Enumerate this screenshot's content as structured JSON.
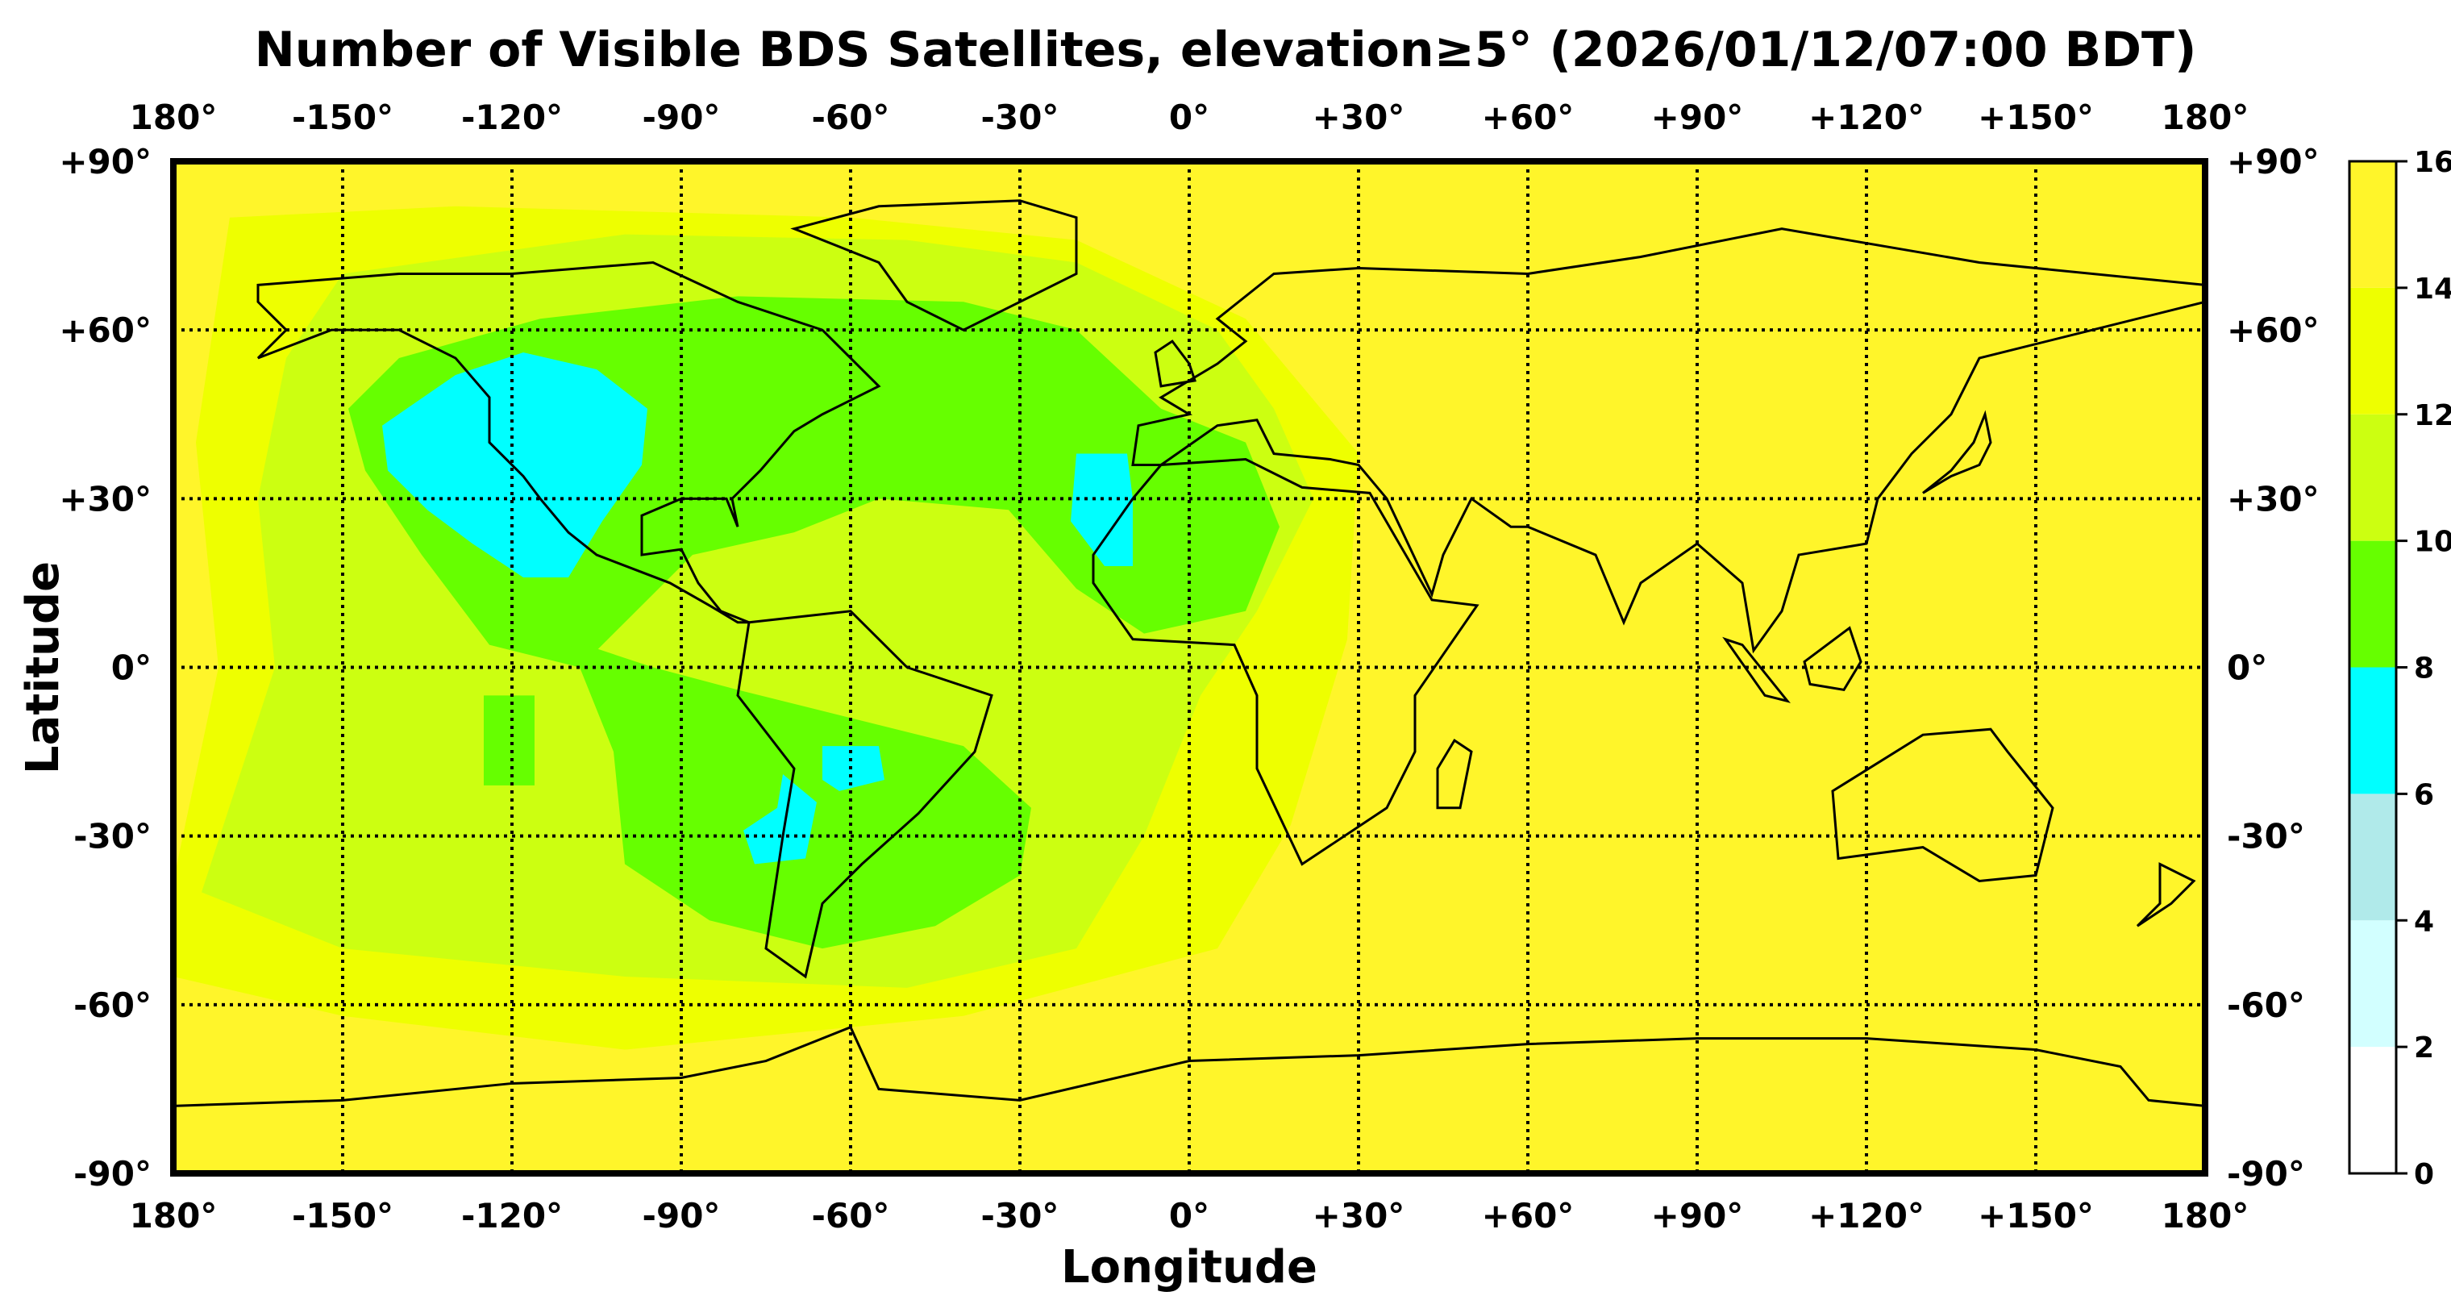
{
  "chart_data": {
    "type": "heatmap",
    "title": "Number of Visible BDS Satellites, elevation≥5° (2026/01/12/07:00 BDT)",
    "xlabel": "Longitude",
    "ylabel": "Latitude",
    "xlim": [
      -180,
      180
    ],
    "ylim": [
      -90,
      90
    ],
    "grid": true,
    "x_ticks": [
      -180,
      -150,
      -120,
      -90,
      -60,
      -30,
      0,
      30,
      60,
      90,
      120,
      150,
      180
    ],
    "x_tick_labels": [
      "180°",
      "-150°",
      "-120°",
      "-90°",
      "-60°",
      "-30°",
      "0°",
      "+30°",
      "+60°",
      "+90°",
      "+120°",
      "+150°",
      "180°"
    ],
    "y_ticks": [
      90,
      60,
      30,
      0,
      -30,
      -60,
      -90
    ],
    "y_tick_labels": [
      "+90°",
      "+60°",
      "+30°",
      "0°",
      "-30°",
      "-60°",
      "-90°"
    ],
    "colorbar": {
      "position": "right",
      "ticks": [
        "0",
        "2",
        "4",
        "6",
        "8",
        "10",
        "12",
        "14",
        "16"
      ],
      "levels": [
        {
          "range": [
            0,
            2
          ],
          "color": "#FFFFFF"
        },
        {
          "range": [
            2,
            4
          ],
          "color": "#D2FFFF"
        },
        {
          "range": [
            4,
            6
          ],
          "color": "#B0EAEA"
        },
        {
          "range": [
            6,
            8
          ],
          "color": "#00FFFF"
        },
        {
          "range": [
            8,
            10
          ],
          "color": "#66FF00"
        },
        {
          "range": [
            10,
            12
          ],
          "color": "#CCFF11"
        },
        {
          "range": [
            12,
            14
          ],
          "color": "#EEFF00"
        },
        {
          "range": [
            14,
            16
          ],
          "color": "#FFF52A"
        }
      ]
    },
    "background_level": "14-16",
    "regions": [
      {
        "level": "12-14",
        "color": "#EEFF00",
        "lonlat": [
          [
            -170,
            80
          ],
          [
            -130,
            82
          ],
          [
            -60,
            80
          ],
          [
            -20,
            76
          ],
          [
            10,
            62
          ],
          [
            30,
            38
          ],
          [
            28,
            5
          ],
          [
            18,
            -28
          ],
          [
            5,
            -50
          ],
          [
            -40,
            -62
          ],
          [
            -100,
            -68
          ],
          [
            -150,
            -62
          ],
          [
            -180,
            -55
          ],
          [
            -180,
            -38
          ],
          [
            -172,
            0
          ],
          [
            -176,
            40
          ]
        ]
      },
      {
        "level": "10-12",
        "color": "#CCFF11",
        "lonlat": [
          [
            -150,
            70
          ],
          [
            -100,
            77
          ],
          [
            -50,
            76
          ],
          [
            -20,
            72
          ],
          [
            5,
            60
          ],
          [
            15,
            46
          ],
          [
            22,
            30
          ],
          [
            12,
            10
          ],
          [
            2,
            -5
          ],
          [
            -8,
            -30
          ],
          [
            -20,
            -50
          ],
          [
            -50,
            -57
          ],
          [
            -100,
            -55
          ],
          [
            -150,
            -50
          ],
          [
            -175,
            -40
          ],
          [
            -162,
            0
          ],
          [
            -165,
            30
          ],
          [
            -160,
            55
          ]
        ]
      },
      {
        "level": "8-10",
        "color": "#66FF00",
        "lonlat": [
          [
            -140,
            55
          ],
          [
            -115,
            62
          ],
          [
            -80,
            66
          ],
          [
            -40,
            65
          ],
          [
            -20,
            60
          ],
          [
            -5,
            46
          ],
          [
            10,
            40
          ],
          [
            16,
            25
          ],
          [
            10,
            10
          ],
          [
            -8,
            6
          ],
          [
            -20,
            14
          ],
          [
            -32,
            28
          ],
          [
            -55,
            30
          ],
          [
            -70,
            24
          ],
          [
            -88,
            20
          ],
          [
            -98,
            10
          ],
          [
            -108,
            0
          ],
          [
            -124,
            4
          ],
          [
            -136,
            20
          ],
          [
            -146,
            35
          ],
          [
            -149,
            46
          ]
        ]
      },
      {
        "level": "8-10",
        "color": "#66FF00",
        "lonlat": [
          [
            -110,
            5
          ],
          [
            -95,
            0
          ],
          [
            -80,
            -4
          ],
          [
            -60,
            -9
          ],
          [
            -40,
            -14
          ],
          [
            -28,
            -25
          ],
          [
            -30,
            -37
          ],
          [
            -45,
            -46
          ],
          [
            -65,
            -50
          ],
          [
            -85,
            -45
          ],
          [
            -100,
            -35
          ],
          [
            -102,
            -15
          ]
        ]
      },
      {
        "level": "8-10",
        "color": "#66FF00",
        "lonlat": [
          [
            -125,
            -5
          ],
          [
            -116,
            -5
          ],
          [
            -116,
            -21
          ],
          [
            -125,
            -21
          ]
        ]
      },
      {
        "level": "6-8",
        "color": "#00FFFF",
        "lonlat": [
          [
            -143,
            43
          ],
          [
            -130,
            52
          ],
          [
            -118,
            56
          ],
          [
            -105,
            53
          ],
          [
            -96,
            46
          ],
          [
            -97,
            36
          ],
          [
            -104,
            26
          ],
          [
            -110,
            16
          ],
          [
            -118,
            16
          ],
          [
            -127,
            22
          ],
          [
            -135,
            28
          ],
          [
            -142,
            35
          ]
        ]
      },
      {
        "level": "6-8",
        "color": "#00FFFF",
        "lonlat": [
          [
            -20,
            38
          ],
          [
            -11,
            38
          ],
          [
            -10,
            30
          ],
          [
            -10,
            18
          ],
          [
            -15,
            18
          ],
          [
            -21,
            26
          ]
        ]
      },
      {
        "level": "6-8",
        "color": "#00FFFF",
        "lonlat": [
          [
            -65,
            -14
          ],
          [
            -55,
            -14
          ],
          [
            -54,
            -20
          ],
          [
            -62,
            -22
          ],
          [
            -65,
            -20
          ]
        ]
      },
      {
        "level": "6-8",
        "color": "#00FFFF",
        "lonlat": [
          [
            -72,
            -19
          ],
          [
            -66,
            -24
          ],
          [
            -68,
            -34
          ],
          [
            -77,
            -35
          ],
          [
            -79,
            -29
          ],
          [
            -73,
            -25
          ]
        ]
      }
    ]
  }
}
